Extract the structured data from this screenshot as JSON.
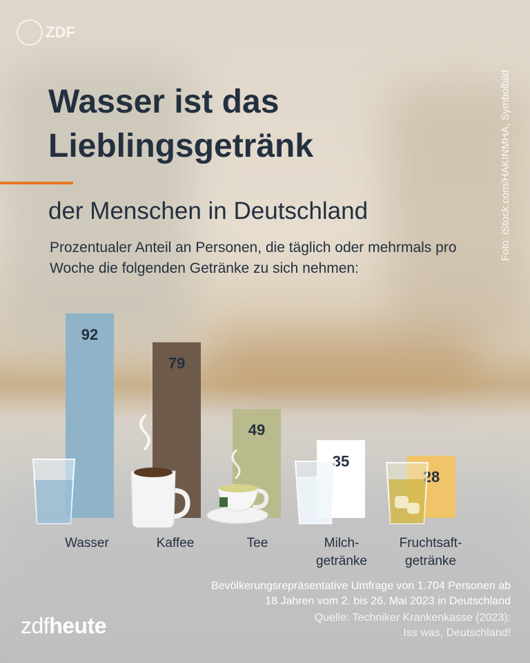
{
  "brand": {
    "watermark": "ZDF",
    "logo_zdf": "zdf",
    "logo_heute": "heute"
  },
  "photo_credit": "Foto: iStock.com/HAKINMHA, Symbolbild",
  "header": {
    "title_line1": "Wasser ist das",
    "title_line2": "Lieblingsgetränk",
    "subtitle": "der Menschen in Deutschland",
    "description": "Prozentualer Anteil an Personen, die täglich oder mehrmals pro Woche die folgenden Getränke zu sich nehmen:"
  },
  "chart_data": {
    "type": "bar",
    "categories": [
      "Wasser",
      "Kaffee",
      "Tee",
      "Milchgetränke",
      "Fruchtsaftgetränke"
    ],
    "category_display": [
      [
        "Wasser"
      ],
      [
        "Kaffee"
      ],
      [
        "Tee"
      ],
      [
        "Milch-",
        "getränke"
      ],
      [
        "Fruchtsaft-",
        "getränke"
      ]
    ],
    "values": [
      92,
      79,
      49,
      35,
      28
    ],
    "unit": "%",
    "colors": [
      "#8fb4c9",
      "#6e5a4b",
      "#b9bb8d",
      "#ffffff",
      "#f1c46a"
    ],
    "icons": [
      "water-glass-icon",
      "coffee-cup-icon",
      "tea-cup-icon",
      "milk-glass-icon",
      "juice-glass-icon"
    ]
  },
  "footer": {
    "note_line1": "Bevölkerungsrepräsentative Umfrage von 1.704 Personen ab",
    "note_line2": "18 Jahren vom 2. bis 26. Mai 2023 in Deutschland",
    "source_line1": "Quelle: Techniker Krankenkasse (2023):",
    "source_line2": "Iss was, Deutschland!"
  }
}
